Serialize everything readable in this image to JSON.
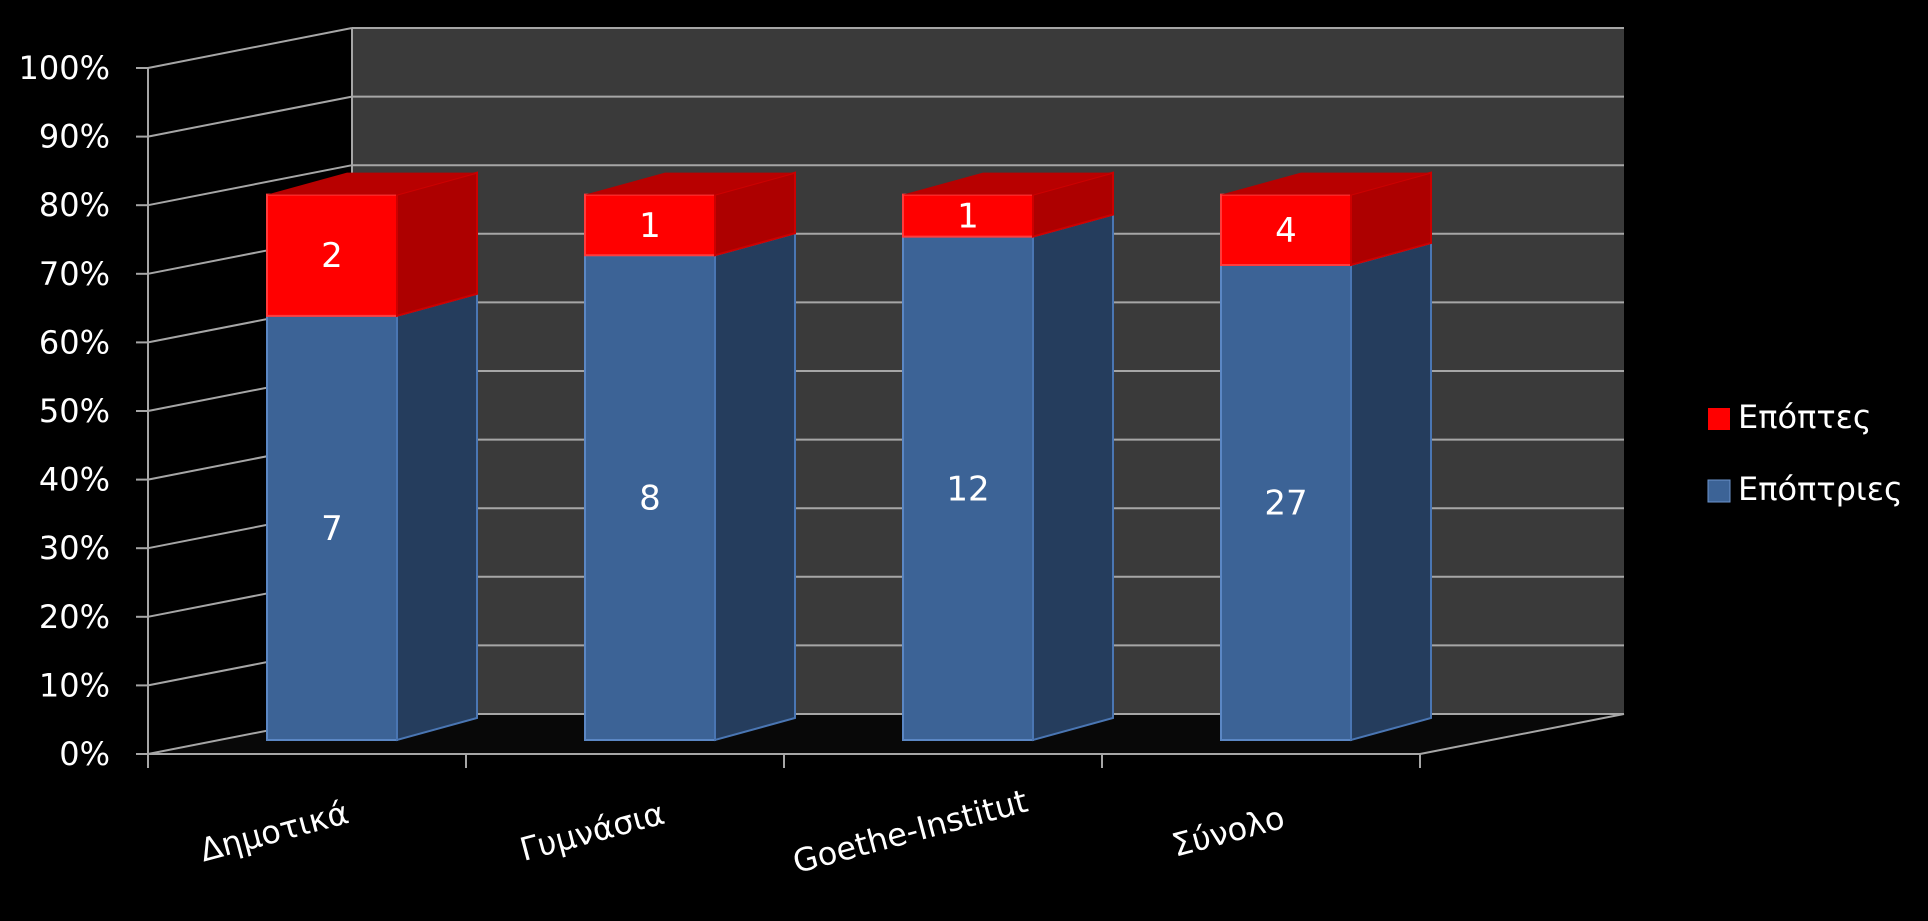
{
  "chart_data": {
    "type": "bar",
    "stacked": "percent",
    "style": "3d",
    "categories": [
      "Δημοτικά",
      "Γυμνάσια",
      "Goethe-Institut",
      "Σύνολο"
    ],
    "series": [
      {
        "name": "Επόπτριες",
        "values": [
          7,
          8,
          12,
          27
        ]
      },
      {
        "name": "Επόπτες",
        "values": [
          2,
          1,
          1,
          4
        ]
      }
    ],
    "y_ticks": [
      "0%",
      "10%",
      "20%",
      "30%",
      "40%",
      "50%",
      "60%",
      "70%",
      "80%",
      "90%",
      "100%"
    ],
    "ylim": [
      0,
      100
    ],
    "grid": true,
    "legend_position": "right",
    "legend": [
      "Επόπτες",
      "Επόπτριες"
    ],
    "colors": {
      "background": "#000000",
      "wall": "#3a3a3a",
      "floor": "#080808",
      "gridline": "#a6a6a6",
      "axis_text": "#ffffff",
      "Επόπτριες": "#3c6396",
      "Επόπτες": "#ff0000"
    }
  }
}
